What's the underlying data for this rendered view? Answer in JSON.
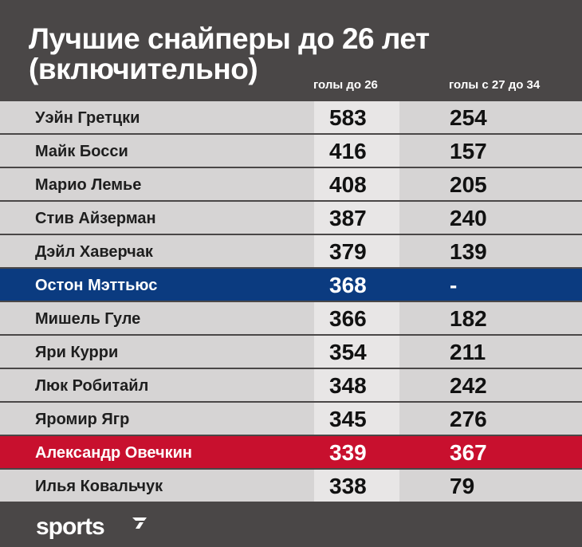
{
  "title_line1": "Лучшие снайперы до 26 лет",
  "title_line2": "(включительно)",
  "columns": {
    "goals_to_26": "голы до 26",
    "goals_27_34": "голы с 27 до 34"
  },
  "rows": [
    {
      "name": "Уэйн Гретцки",
      "g26": "583",
      "g27": "254"
    },
    {
      "name": "Майк Босси",
      "g26": "416",
      "g27": "157"
    },
    {
      "name": "Марио Лемье",
      "g26": "408",
      "g27": "205"
    },
    {
      "name": "Стив Айзерман",
      "g26": "387",
      "g27": "240"
    },
    {
      "name": "Дэйл Хаверчак",
      "g26": "379",
      "g27": "139"
    },
    {
      "name": "Остон Мэттьюс",
      "g26": "368",
      "g27": "-"
    },
    {
      "name": "Мишель Гуле",
      "g26": "366",
      "g27": "182"
    },
    {
      "name": "Яри Курри",
      "g26": "354",
      "g27": "211"
    },
    {
      "name": "Люк Робитайл",
      "g26": "348",
      "g27": "242"
    },
    {
      "name": "Яромир Ягр",
      "g26": "345",
      "g27": "276"
    },
    {
      "name": "Александр Овечкин",
      "g26": "339",
      "g27": "367"
    },
    {
      "name": "Илья Ковальчук",
      "g26": "338",
      "g27": "79"
    }
  ],
  "logo": "sports",
  "colors": {
    "background": "#4a4747",
    "row": "#d6d4d4",
    "highlight_blue": "#0b3b80",
    "highlight_red": "#c8102e"
  }
}
